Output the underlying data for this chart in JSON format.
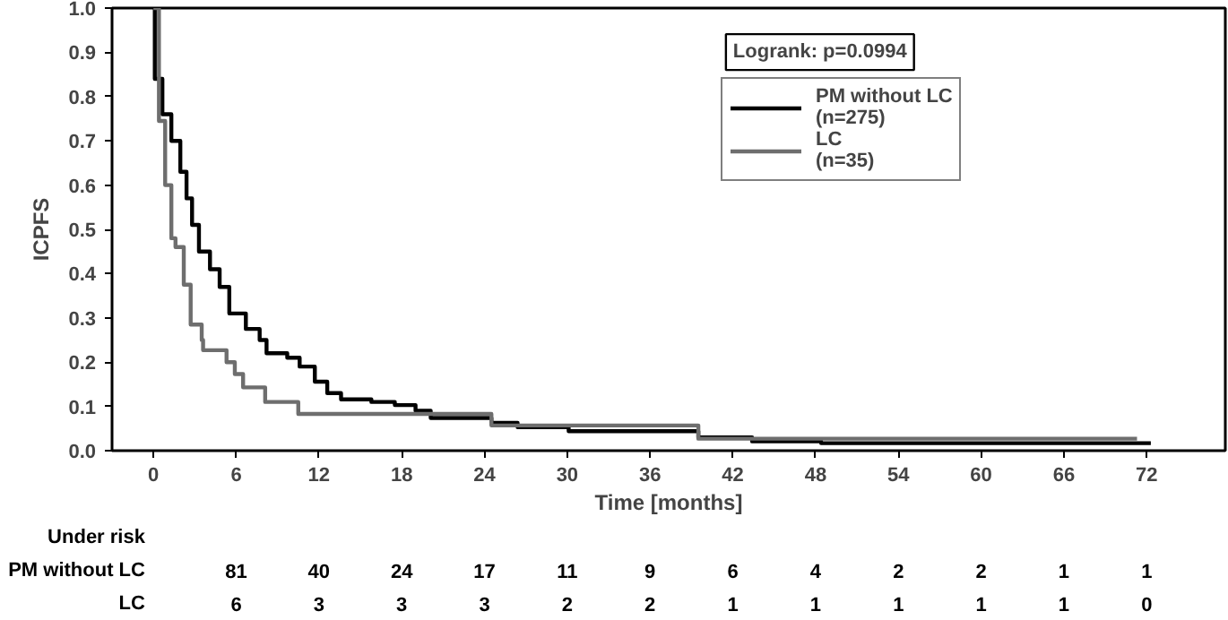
{
  "chart_data": {
    "type": "step",
    "xlabel": "Time [months]",
    "ylabel": "ICPFS",
    "xlim": [
      -3,
      77.7
    ],
    "ylim": [
      0,
      1
    ],
    "xticks": [
      0,
      6,
      12,
      18,
      24,
      30,
      36,
      42,
      48,
      54,
      60,
      66,
      72
    ],
    "yticks": [
      {
        "value": 0,
        "label": "0.0"
      },
      {
        "value": 0.1,
        "label": "0.1"
      },
      {
        "value": 0.2,
        "label": "0.2"
      },
      {
        "value": 0.3,
        "label": "0.3"
      },
      {
        "value": 0.4,
        "label": "0.4"
      },
      {
        "value": 0.5,
        "label": "0.5"
      },
      {
        "value": 0.6,
        "label": "0.6"
      },
      {
        "value": 0.7,
        "label": "0.7"
      },
      {
        "value": 0.8,
        "label": "0.8"
      },
      {
        "value": 0.9,
        "label": "0.9"
      },
      {
        "value": 1,
        "label": "1.0"
      }
    ],
    "grid": false,
    "legend": "top right",
    "marker": "none",
    "line_style": "solid",
    "series": [
      {
        "name": "PM without LC\n(n=275)",
        "color": "#000000",
        "x": [
          0,
          0.1,
          0.65,
          1.3,
          1.95,
          2.4,
          2.8,
          3.3,
          4.1,
          4.8,
          5.5,
          6.7,
          7.7,
          8.2,
          9.7,
          10.6,
          11.7,
          12.6,
          13.6,
          15.8,
          17.5,
          19,
          20.1,
          24.5,
          26.4,
          30.1,
          39.5,
          43.4,
          48.4,
          72.3
        ],
        "values": [
          1,
          0.84,
          0.76,
          0.7,
          0.63,
          0.57,
          0.51,
          0.45,
          0.41,
          0.37,
          0.31,
          0.275,
          0.25,
          0.22,
          0.21,
          0.19,
          0.156,
          0.13,
          0.116,
          0.11,
          0.103,
          0.09,
          0.074,
          0.063,
          0.053,
          0.044,
          0.03,
          0.021,
          0.017,
          0.017
        ]
      },
      {
        "name": "LC\n(n=35)",
        "color": "#6e6e6e",
        "x": [
          0,
          0.4,
          0.85,
          1.3,
          1.6,
          2.2,
          2.7,
          3.5,
          3.6,
          5.3,
          5.9,
          6.5,
          8.1,
          10.5,
          24.5,
          39.5,
          71.3
        ],
        "values": [
          1,
          0.745,
          0.6,
          0.48,
          0.46,
          0.375,
          0.285,
          0.25,
          0.227,
          0.2,
          0.173,
          0.143,
          0.11,
          0.083,
          0.057,
          0.027,
          0.027
        ]
      }
    ],
    "annotations": [
      "Logrank: p=0.0994",
      "Under risk",
      "PM without LC",
      "81",
      "40",
      "24",
      "17",
      "11",
      "9",
      "6",
      "4",
      "2",
      "2",
      "1",
      "1",
      "LC",
      "6",
      "3",
      "3",
      "3",
      "2",
      "2",
      "1",
      "1",
      "1",
      "1",
      "1",
      "0"
    ]
  }
}
